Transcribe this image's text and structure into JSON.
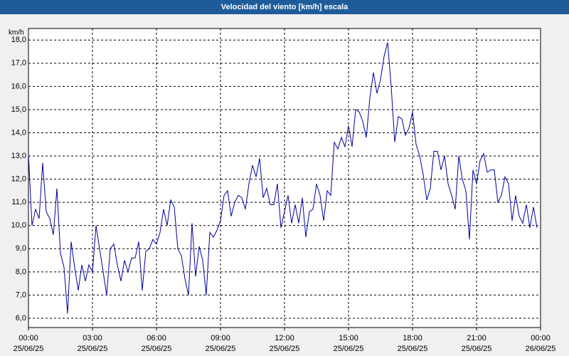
{
  "chart_data": {
    "type": "line",
    "title": "Velocidad del viento [km/h] escala",
    "y_label": "km/h",
    "color": "#0000a0",
    "grid": true,
    "xlim": [
      0,
      1440
    ],
    "ylim": [
      5.6,
      18.5
    ],
    "xticks": [
      {
        "value": 0,
        "label": "00:00"
      },
      {
        "value": 180,
        "label": "03:00"
      },
      {
        "value": 360,
        "label": "06:00"
      },
      {
        "value": 540,
        "label": "09:00"
      },
      {
        "value": 720,
        "label": "12:00"
      },
      {
        "value": 900,
        "label": "15:00"
      },
      {
        "value": 1080,
        "label": "18:00"
      },
      {
        "value": 1260,
        "label": "21:00"
      },
      {
        "value": 1440,
        "label": "00:00"
      }
    ],
    "xtick_dates": [
      "25/06/25",
      "25/06/25",
      "25/06/25",
      "25/06/25",
      "25/06/25",
      "25/06/25",
      "25/06/25",
      "25/06/25",
      "26/06/25"
    ],
    "yticks": [
      {
        "value": 6,
        "label": "6,0"
      },
      {
        "value": 7,
        "label": "7,0"
      },
      {
        "value": 8,
        "label": "8,0"
      },
      {
        "value": 9,
        "label": "9,0"
      },
      {
        "value": 10,
        "label": "10,0"
      },
      {
        "value": 11,
        "label": "11,0"
      },
      {
        "value": 12,
        "label": "12,0"
      },
      {
        "value": 13,
        "label": "13,0"
      },
      {
        "value": 14,
        "label": "14,0"
      },
      {
        "value": 15,
        "label": "15,0"
      },
      {
        "value": 16,
        "label": "16,0"
      },
      {
        "value": 17,
        "label": "17,0"
      },
      {
        "value": 18,
        "label": "18,0"
      }
    ],
    "x": [
      0,
      10,
      20,
      30,
      40,
      50,
      60,
      70,
      80,
      90,
      100,
      110,
      120,
      130,
      140,
      150,
      160,
      170,
      180,
      190,
      200,
      210,
      220,
      230,
      240,
      250,
      260,
      270,
      280,
      290,
      300,
      310,
      320,
      330,
      340,
      350,
      360,
      370,
      380,
      390,
      400,
      410,
      420,
      430,
      440,
      450,
      460,
      470,
      480,
      490,
      500,
      510,
      520,
      530,
      540,
      550,
      560,
      570,
      580,
      590,
      600,
      610,
      620,
      630,
      640,
      650,
      660,
      670,
      680,
      690,
      700,
      710,
      720,
      730,
      740,
      750,
      760,
      770,
      780,
      790,
      800,
      810,
      820,
      830,
      840,
      850,
      860,
      870,
      880,
      890,
      900,
      910,
      920,
      930,
      940,
      950,
      960,
      970,
      980,
      990,
      1000,
      1010,
      1020,
      1030,
      1040,
      1050,
      1060,
      1070,
      1080,
      1090,
      1100,
      1110,
      1120,
      1130,
      1140,
      1150,
      1160,
      1170,
      1180,
      1190,
      1200,
      1210,
      1220,
      1230,
      1240,
      1250,
      1260,
      1270,
      1280,
      1290,
      1300,
      1310,
      1320,
      1330,
      1340,
      1350,
      1360,
      1370,
      1380,
      1390,
      1400,
      1410,
      1420,
      1430
    ],
    "values": [
      13.1,
      10.0,
      10.7,
      10.3,
      12.7,
      10.6,
      10.3,
      9.6,
      11.6,
      8.8,
      8.2,
      6.2,
      9.3,
      8.2,
      7.2,
      8.3,
      7.6,
      8.3,
      8.0,
      10.0,
      9.0,
      8.0,
      7.0,
      9.0,
      9.2,
      8.3,
      7.6,
      8.5,
      8.0,
      8.6,
      8.6,
      9.3,
      7.2,
      8.9,
      9.0,
      9.4,
      9.2,
      9.7,
      10.7,
      10.0,
      11.1,
      10.8,
      9.0,
      8.7,
      7.7,
      7.0,
      10.1,
      7.8,
      9.1,
      8.5,
      7.0,
      9.7,
      9.5,
      9.8,
      10.2,
      11.3,
      11.5,
      10.4,
      11.0,
      11.3,
      11.2,
      10.7,
      11.8,
      12.6,
      12.1,
      12.9,
      11.2,
      11.6,
      10.9,
      10.9,
      11.8,
      9.9,
      10.6,
      11.3,
      10.1,
      10.9,
      10.1,
      11.2,
      9.5,
      10.6,
      10.7,
      11.8,
      11.3,
      10.2,
      11.5,
      11.3,
      13.6,
      13.3,
      13.8,
      13.4,
      14.3,
      13.4,
      15.0,
      14.9,
      14.5,
      13.8,
      15.5,
      16.6,
      15.7,
      16.3,
      17.3,
      17.9,
      16.0,
      13.6,
      14.7,
      14.6,
      13.9,
      14.2,
      14.9,
      13.5,
      13.0,
      12.2,
      11.1,
      11.6,
      13.2,
      13.2,
      12.4,
      13.0,
      11.8,
      11.3,
      10.7,
      13.0,
      12.0,
      11.5,
      9.4,
      12.4,
      11.8,
      12.8,
      13.1,
      12.3,
      12.4,
      12.4,
      11.0,
      11.3,
      12.1,
      11.8,
      10.2,
      11.3,
      10.4,
      10.1,
      10.9,
      9.9,
      10.8,
      9.9
    ]
  }
}
